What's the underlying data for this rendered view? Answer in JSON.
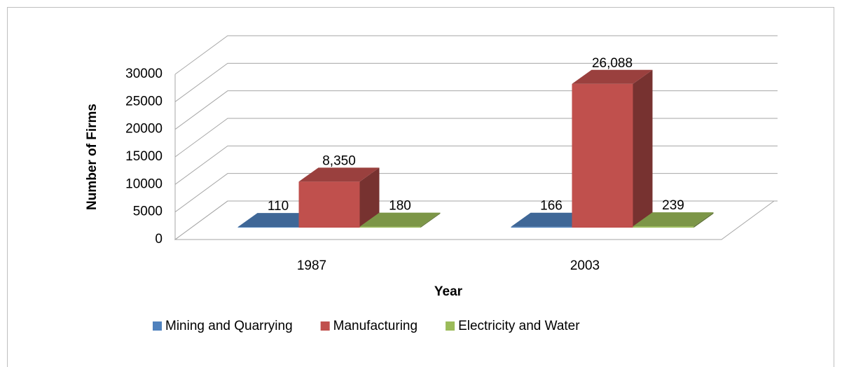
{
  "chart_data": {
    "type": "bar3d",
    "x_label": "Year",
    "y_label": "Number of Firms",
    "categories": [
      "1987",
      "2003"
    ],
    "series": [
      {
        "name": "Mining and Quarrying",
        "color": "#4f81bd",
        "values": [
          110,
          166
        ]
      },
      {
        "name": "Manufacturing",
        "color": "#c0504d",
        "values": [
          8350,
          26088
        ],
        "value_labels": [
          "8,350",
          "26,088"
        ]
      },
      {
        "name": "Electricity and Water",
        "color": "#9bbb59",
        "values": [
          180,
          239
        ]
      }
    ],
    "ylim": [
      0,
      30000
    ],
    "yticks": [
      0,
      5000,
      10000,
      15000,
      20000,
      25000,
      30000
    ],
    "grid": true,
    "legend": "bottom"
  }
}
